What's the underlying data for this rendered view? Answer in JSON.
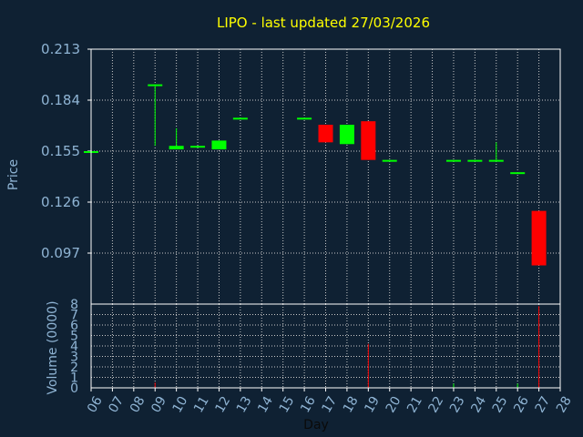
{
  "chart_data": [
    {
      "type": "candlestick",
      "title": "LIPO - last updated 27/03/2026",
      "ylabel": "Price",
      "ylim": [
        0.068,
        0.213
      ],
      "y_ticks": [
        "0.213",
        "0.184",
        "0.155",
        "0.126",
        "0.097"
      ],
      "grid": true,
      "candles": [
        {
          "day": "06",
          "open": 0.155,
          "high": 0.155,
          "low": 0.155,
          "close": 0.155
        },
        {
          "day": "09",
          "open": 0.193,
          "high": 0.193,
          "low": 0.158,
          "close": 0.193
        },
        {
          "day": "10",
          "open": 0.156,
          "high": 0.168,
          "low": 0.156,
          "close": 0.158
        },
        {
          "day": "11",
          "open": 0.157,
          "high": 0.158,
          "low": 0.157,
          "close": 0.158
        },
        {
          "day": "12",
          "open": 0.156,
          "high": 0.161,
          "low": 0.156,
          "close": 0.161
        },
        {
          "day": "13",
          "open": 0.174,
          "high": 0.174,
          "low": 0.174,
          "close": 0.174
        },
        {
          "day": "16",
          "open": 0.174,
          "high": 0.174,
          "low": 0.174,
          "close": 0.174
        },
        {
          "day": "17",
          "open": 0.17,
          "high": 0.17,
          "low": 0.16,
          "close": 0.16
        },
        {
          "day": "18",
          "open": 0.159,
          "high": 0.17,
          "low": 0.159,
          "close": 0.17
        },
        {
          "day": "19",
          "open": 0.172,
          "high": 0.172,
          "low": 0.15,
          "close": 0.15
        },
        {
          "day": "20",
          "open": 0.15,
          "high": 0.15,
          "low": 0.15,
          "close": 0.15
        },
        {
          "day": "23",
          "open": 0.15,
          "high": 0.15,
          "low": 0.15,
          "close": 0.15
        },
        {
          "day": "24",
          "open": 0.15,
          "high": 0.15,
          "low": 0.15,
          "close": 0.15
        },
        {
          "day": "25",
          "open": 0.15,
          "high": 0.16,
          "low": 0.15,
          "close": 0.15
        },
        {
          "day": "26",
          "open": 0.143,
          "high": 0.143,
          "low": 0.143,
          "close": 0.143
        },
        {
          "day": "27",
          "open": 0.121,
          "high": 0.121,
          "low": 0.09,
          "close": 0.09
        }
      ],
      "colors": {
        "up": "#00ff00",
        "down": "#ff0000",
        "flat": "#00ff00",
        "background": "#0f2133",
        "grid": "#c8c8c8",
        "title": "#ffff00",
        "axis_text": "#8fb4d4"
      }
    },
    {
      "type": "bar",
      "ylabel": "Volume (0000)",
      "xlabel": "Day",
      "ylim": [
        0,
        8
      ],
      "y_ticks": [
        "0",
        "1",
        "2",
        "3",
        "4",
        "5",
        "6",
        "7",
        "8"
      ],
      "categories": [
        "06",
        "07",
        "08",
        "09",
        "10",
        "11",
        "12",
        "13",
        "14",
        "15",
        "16",
        "17",
        "18",
        "19",
        "20",
        "21",
        "22",
        "23",
        "24",
        "25",
        "26",
        "27",
        "28"
      ],
      "values": [
        0.02,
        0,
        0,
        0.5,
        0.02,
        0.02,
        0.02,
        0.02,
        0,
        0,
        0.02,
        0.02,
        0.02,
        4.2,
        0.02,
        0,
        0,
        0.4,
        0.02,
        0.02,
        0.4,
        7.8,
        0
      ],
      "bar_colors": [
        "#00ff00",
        "#00ff00",
        "#00ff00",
        "#ff0000",
        "#00ff00",
        "#00ff00",
        "#00ff00",
        "#00ff00",
        "#00ff00",
        "#00ff00",
        "#00ff00",
        "#ff0000",
        "#00ff00",
        "#ff0000",
        "#00ff00",
        "#00ff00",
        "#00ff00",
        "#00ff00",
        "#00ff00",
        "#00ff00",
        "#00ff00",
        "#ff0000",
        "#00ff00"
      ]
    }
  ]
}
